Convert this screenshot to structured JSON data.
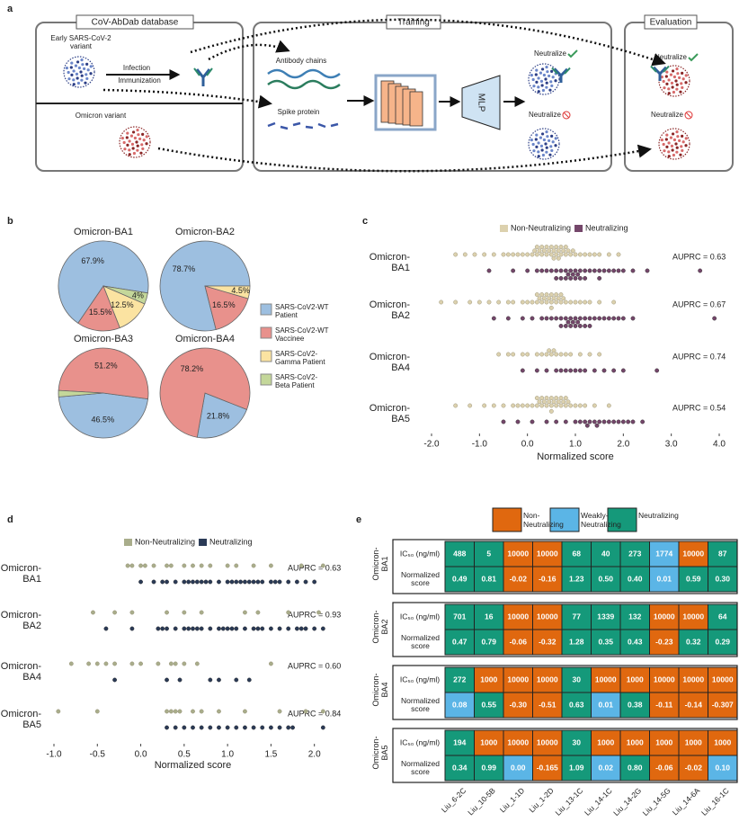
{
  "panel_a": {
    "letter": "a",
    "box1_title": "CoV-AbDab database",
    "early_variant": "Early SARS-CoV-2 variant",
    "infection": "Infection",
    "immunization": "Immunization",
    "omicron": "Omicron variant",
    "box2_title": "Training",
    "antibody_chains": "Antibody chains",
    "spike_protein": "Spike protein",
    "mlp": "MLP",
    "neutralize_yes": "Neutralize",
    "neutralize_no": "Neutralize",
    "box3_title": "Evaluation",
    "eval_yes": "Neutralize",
    "eval_no": "Neutralize"
  },
  "chart_data": [
    {
      "type": "pie",
      "letter": "b",
      "categories": [
        "SARS-CoV2-WT Patient",
        "SARS-CoV2-WT Vaccinee",
        "SARS-CoV2-Gamma Patient",
        "SARS-CoV2-Beta Patient"
      ],
      "colors": [
        "#9dbfe0",
        "#e8918c",
        "#fbe3a1",
        "#c4d79a"
      ],
      "pies": [
        {
          "title": "Omicron-BA1",
          "values": [
            67.9,
            15.5,
            12.5,
            4
          ],
          "value_labels": [
            "67.9%",
            "15.5%",
            "12.5%",
            "4%"
          ]
        },
        {
          "title": "Omicron-BA2",
          "values": [
            78.7,
            16.5,
            4.5,
            null
          ],
          "value_labels": [
            "78.7%",
            "16.5%",
            "4.5%",
            null
          ]
        },
        {
          "title": "Omicron-BA3",
          "values": [
            46.5,
            51.2,
            null,
            2.3
          ],
          "value_labels": [
            "46.5%",
            "51.2%",
            null,
            null
          ]
        },
        {
          "title": "Omicron-BA4",
          "values": [
            21.8,
            78.2,
            null,
            null
          ],
          "value_labels": [
            "21.8%",
            "78.2%",
            null,
            null
          ]
        }
      ]
    },
    {
      "type": "swarm",
      "letter": "c",
      "xlabel": "Normalized score",
      "xlim": [
        -2.0,
        4.0
      ],
      "xticks": [
        {
          "value": -2.0,
          "label": "-2.0"
        },
        {
          "value": -1.0,
          "label": "-1.0"
        },
        {
          "value": 0.0,
          "label": "0.0"
        },
        {
          "value": 1.0,
          "label": "1.0"
        },
        {
          "value": 2.0,
          "label": "2.0"
        },
        {
          "value": 3.0,
          "label": "3.0"
        },
        {
          "value": 4.0,
          "label": "4.0"
        }
      ],
      "series": [
        {
          "name": "Non-Neutralizing",
          "color": "#dcd1ae"
        },
        {
          "name": "Neutralizing",
          "color": "#74466a"
        }
      ],
      "rows": [
        {
          "label": "Omicron-BA1",
          "annotation": "AUPRC = 0.63",
          "values": [
            [
              -1.5,
              -1.3,
              -1.1,
              -0.9,
              -0.7,
              -0.5,
              -0.4,
              -0.3,
              -0.2,
              -0.1,
              0.0,
              0.1,
              0.15,
              0.2,
              0.25,
              0.3,
              0.35,
              0.4,
              0.45,
              0.5,
              0.55,
              0.6,
              0.65,
              0.7,
              0.75,
              0.8,
              0.85,
              0.9,
              0.95,
              1.0,
              1.1,
              1.2,
              1.3,
              1.4,
              1.5,
              1.7,
              1.9,
              0.3,
              0.5,
              0.6,
              0.7,
              0.4,
              0.8,
              0.2,
              0.55,
              0.65
            ],
            [
              -0.8,
              -0.3,
              0.0,
              0.2,
              0.4,
              0.5,
              0.6,
              0.7,
              0.8,
              0.85,
              0.9,
              0.95,
              1.0,
              1.05,
              1.1,
              1.2,
              1.3,
              1.4,
              1.5,
              1.6,
              1.7,
              1.8,
              1.9,
              2.0,
              2.2,
              2.5,
              3.6,
              0.7,
              0.9,
              1.0,
              1.1,
              0.8,
              1.2,
              0.6,
              0.3,
              1.5
            ]
          ]
        },
        {
          "label": "Omicron-BA2",
          "annotation": "AUPRC = 0.67",
          "values": [
            [
              -1.8,
              -1.5,
              -1.2,
              -1.0,
              -0.8,
              -0.6,
              -0.4,
              -0.3,
              -0.1,
              0.0,
              0.1,
              0.2,
              0.25,
              0.3,
              0.35,
              0.4,
              0.45,
              0.5,
              0.55,
              0.6,
              0.65,
              0.7,
              0.75,
              0.8,
              0.9,
              1.0,
              1.1,
              1.2,
              1.3,
              1.5,
              1.8,
              0.3,
              0.5,
              0.6,
              0.4,
              0.2,
              0.7,
              0.5
            ],
            [
              -0.7,
              -0.4,
              -0.1,
              0.1,
              0.3,
              0.4,
              0.5,
              0.6,
              0.7,
              0.8,
              0.85,
              0.9,
              0.95,
              1.0,
              1.05,
              1.1,
              1.2,
              1.3,
              1.4,
              1.5,
              1.6,
              1.7,
              1.8,
              1.9,
              2.0,
              2.2,
              3.9,
              0.8,
              1.0,
              1.1,
              0.9,
              1.3,
              0.7,
              1.2
            ]
          ]
        },
        {
          "label": "Omicron-BA4",
          "annotation": "AUPRC = 0.74",
          "values": [
            [
              -0.6,
              -0.4,
              -0.3,
              -0.1,
              0.0,
              0.2,
              0.3,
              0.4,
              0.5,
              0.6,
              0.7,
              0.8,
              0.9,
              1.1,
              1.3,
              1.5,
              0.45,
              0.55
            ],
            [
              -0.1,
              0.2,
              0.4,
              0.6,
              0.7,
              0.8,
              0.9,
              1.0,
              1.2,
              1.4,
              1.6,
              1.8,
              2.0,
              2.7,
              1.1
            ]
          ]
        },
        {
          "label": "Omicron-BA5",
          "annotation": "AUPRC = 0.54",
          "values": [
            [
              -1.5,
              -1.2,
              -0.9,
              -0.7,
              -0.5,
              -0.3,
              -0.2,
              -0.1,
              0.0,
              0.1,
              0.2,
              0.25,
              0.3,
              0.35,
              0.4,
              0.45,
              0.5,
              0.55,
              0.6,
              0.65,
              0.7,
              0.75,
              0.8,
              0.85,
              0.9,
              1.0,
              1.1,
              1.2,
              1.4,
              1.7,
              0.3,
              0.5,
              0.6,
              0.4,
              0.7,
              0.2,
              0.5,
              0.8
            ],
            [
              -0.5,
              -0.2,
              0.1,
              0.4,
              0.6,
              0.8,
              1.0,
              1.1,
              1.2,
              1.3,
              1.4,
              1.5,
              1.6,
              1.7,
              1.8,
              1.9,
              2.0,
              2.1,
              2.2,
              2.4,
              1.45,
              1.25
            ]
          ]
        }
      ]
    },
    {
      "type": "swarm",
      "letter": "d",
      "xlabel": "Normalized score",
      "xlim": [
        -1.0,
        2.2
      ],
      "xticks": [
        {
          "value": -1.0,
          "label": "-1.0"
        },
        -0.5,
        {
          "value": 0.0,
          "label": "0.0"
        },
        0.5,
        {
          "value": 1.0,
          "label": "1.0"
        },
        1.5,
        {
          "value": 2.0,
          "label": "2.0"
        }
      ],
      "series": [
        {
          "name": "Non-Neutralizing",
          "color": "#a9ad8b"
        },
        {
          "name": "Neutralizing",
          "color": "#2a3a56"
        }
      ],
      "rows": [
        {
          "label": "Omicron-BA1",
          "annotation": "AUPRC = 0.63",
          "values": [
            [
              -0.15,
              -0.1,
              0.0,
              0.05,
              0.15,
              0.3,
              0.35,
              0.5,
              0.6,
              0.7,
              0.8,
              1.0,
              1.1,
              1.3,
              1.5,
              1.85,
              2.1
            ],
            [
              0.0,
              0.15,
              0.25,
              0.3,
              0.4,
              0.5,
              0.55,
              0.6,
              0.65,
              0.7,
              0.75,
              0.8,
              0.9,
              1.0,
              1.05,
              1.1,
              1.15,
              1.2,
              1.25,
              1.3,
              1.35,
              1.4,
              1.5,
              1.55,
              1.6,
              1.7,
              1.8,
              1.9,
              2.0
            ]
          ]
        },
        {
          "label": "Omicron-BA2",
          "annotation": "AUPRC = 0.93",
          "values": [
            [
              -0.55,
              -0.3,
              -0.1,
              0.3,
              0.5,
              0.7,
              1.2,
              1.35,
              1.7,
              2.05
            ],
            [
              -0.4,
              -0.1,
              0.2,
              0.25,
              0.3,
              0.4,
              0.5,
              0.55,
              0.6,
              0.65,
              0.7,
              0.8,
              0.9,
              0.95,
              1.0,
              1.05,
              1.1,
              1.2,
              1.3,
              1.35,
              1.4,
              1.5,
              1.6,
              1.7,
              1.8,
              1.85,
              1.9,
              2.0,
              2.1
            ]
          ]
        },
        {
          "label": "Omicron-BA4",
          "annotation": "AUPRC = 0.60",
          "values": [
            [
              -0.8,
              -0.6,
              -0.5,
              -0.4,
              -0.3,
              -0.1,
              0.0,
              0.2,
              0.35,
              0.4,
              0.5,
              0.65,
              1.5
            ],
            [
              -0.3,
              0.3,
              0.45,
              0.8,
              0.9,
              1.1,
              1.25
            ]
          ]
        },
        {
          "label": "Omicron-BA5",
          "annotation": "AUPRC = 0.84",
          "values": [
            [
              -0.95,
              -0.5,
              0.3,
              0.35,
              0.4,
              0.45,
              0.6,
              0.7,
              0.9,
              1.2,
              1.6,
              1.9,
              2.1
            ],
            [
              0.3,
              0.4,
              0.5,
              0.6,
              0.7,
              0.8,
              0.9,
              1.0,
              1.1,
              1.2,
              1.3,
              1.4,
              1.5,
              1.6,
              1.7,
              1.75,
              2.1
            ]
          ]
        }
      ]
    }
  ],
  "panel_e": {
    "letter": "e",
    "legend": [
      {
        "name": "Non-Neutralizing",
        "color": "#e0680f"
      },
      {
        "name": "Weakly-Neutralizing",
        "color": "#5bb5e6"
      },
      {
        "name": "Neutralizing",
        "color": "#15997a"
      }
    ],
    "ic50_label": "IC₅₀ (ng/ml)",
    "score_label": "Normalized score",
    "antibodies": [
      "Liu_6-2C",
      "Liu_10-5B",
      "Liu_1-1D",
      "Liu_1-2D",
      "Liu_13-1C",
      "Liu_14-1C",
      "Liu_14-2G",
      "Liu_14-5G",
      "Liu_14-6A",
      "Liu_16-1C"
    ],
    "blocks": [
      {
        "label": "Omicron-BA1",
        "ic50": [
          "488",
          "5",
          "10000",
          "10000",
          "68",
          "40",
          "273",
          "1774",
          "10000",
          "87"
        ],
        "ic50_status": [
          2,
          2,
          0,
          0,
          2,
          2,
          2,
          1,
          0,
          2
        ],
        "score": [
          "0.49",
          "0.81",
          "-0.02",
          "-0.16",
          "1.23",
          "0.50",
          "0.40",
          "0.01",
          "0.59",
          "0.30"
        ],
        "score_status": [
          2,
          2,
          0,
          0,
          2,
          2,
          2,
          1,
          2,
          2
        ]
      },
      {
        "label": "Omicron-BA2",
        "ic50": [
          "701",
          "16",
          "10000",
          "10000",
          "77",
          "1339",
          "132",
          "10000",
          "10000",
          "64"
        ],
        "ic50_status": [
          2,
          2,
          0,
          0,
          2,
          2,
          2,
          0,
          0,
          2
        ],
        "score": [
          "0.47",
          "0.79",
          "-0.06",
          "-0.32",
          "1.28",
          "0.35",
          "0.43",
          "-0.23",
          "0.32",
          "0.29"
        ],
        "score_status": [
          2,
          2,
          0,
          0,
          2,
          2,
          2,
          0,
          2,
          2
        ]
      },
      {
        "label": "Omicron-BA4",
        "ic50": [
          "272",
          "1000",
          "10000",
          "10000",
          "30",
          "10000",
          "1000",
          "10000",
          "10000",
          "10000"
        ],
        "ic50_status": [
          2,
          0,
          0,
          0,
          2,
          0,
          0,
          0,
          0,
          0
        ],
        "score": [
          "0.08",
          "0.55",
          "-0.30",
          "-0.51",
          "0.63",
          "0.01",
          "0.38",
          "-0.11",
          "-0.14",
          "-0.307"
        ],
        "score_status": [
          1,
          2,
          0,
          0,
          2,
          1,
          2,
          0,
          0,
          0
        ]
      },
      {
        "label": "Omicron-BA5",
        "ic50": [
          "194",
          "1000",
          "10000",
          "10000",
          "30",
          "1000",
          "1000",
          "1000",
          "1000",
          "1000"
        ],
        "ic50_status": [
          2,
          0,
          0,
          0,
          2,
          0,
          0,
          0,
          0,
          0
        ],
        "score": [
          "0.34",
          "0.99",
          "0.00",
          "-0.165",
          "1.09",
          "0.02",
          "0.80",
          "-0.06",
          "-0.02",
          "0.10"
        ],
        "score_status": [
          2,
          2,
          1,
          0,
          2,
          1,
          2,
          0,
          0,
          1
        ]
      }
    ]
  }
}
